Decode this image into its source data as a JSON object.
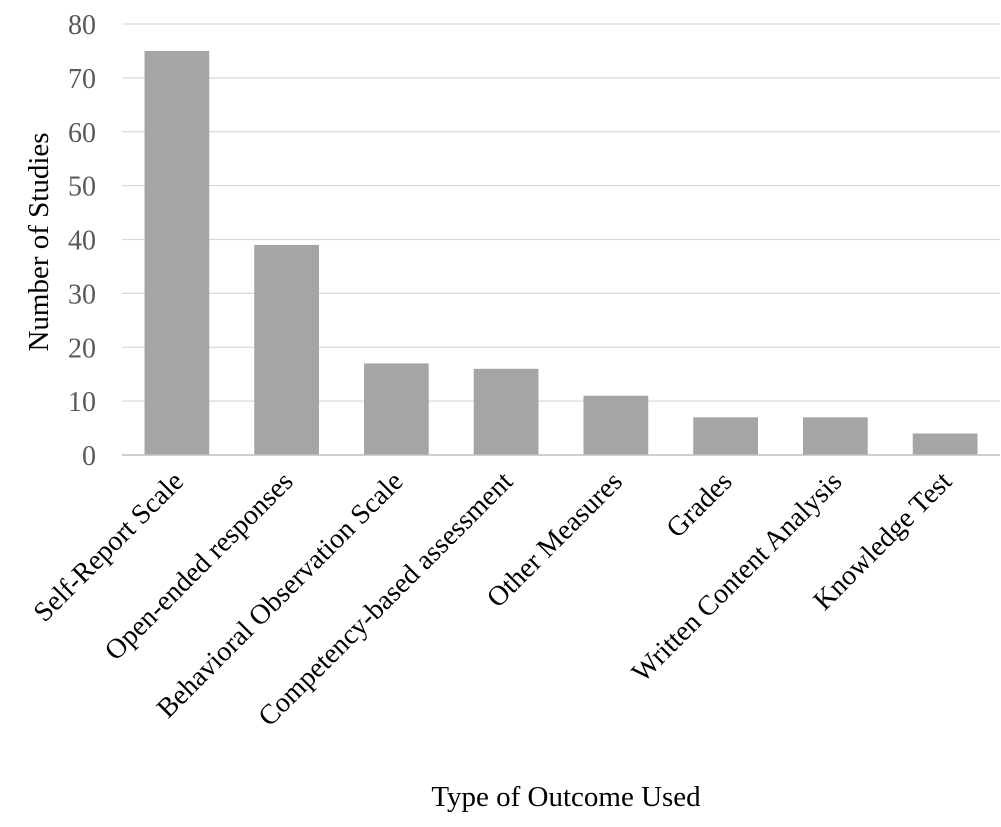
{
  "chart_data": {
    "type": "bar",
    "title": "",
    "xlabel": "Type of Outcome Used",
    "ylabel": "Number of Studies",
    "ylim": [
      0,
      80
    ],
    "yticks": [
      0,
      10,
      20,
      30,
      40,
      50,
      60,
      70,
      80
    ],
    "grid": true,
    "legend": "none",
    "categories": [
      "Self-Report Scale",
      "Open-ended responses",
      "Behavioral Observation Scale",
      "Competency-based assessment",
      "Other Measures",
      "Grades",
      "Written Content Analysis",
      "Knowledge Test"
    ],
    "values": [
      75,
      39,
      17,
      16,
      11,
      7,
      7,
      4
    ],
    "colors": {
      "bar": "#a5a5a5",
      "grid": "#d9d9d9",
      "axis": "#bfbfbf"
    }
  }
}
